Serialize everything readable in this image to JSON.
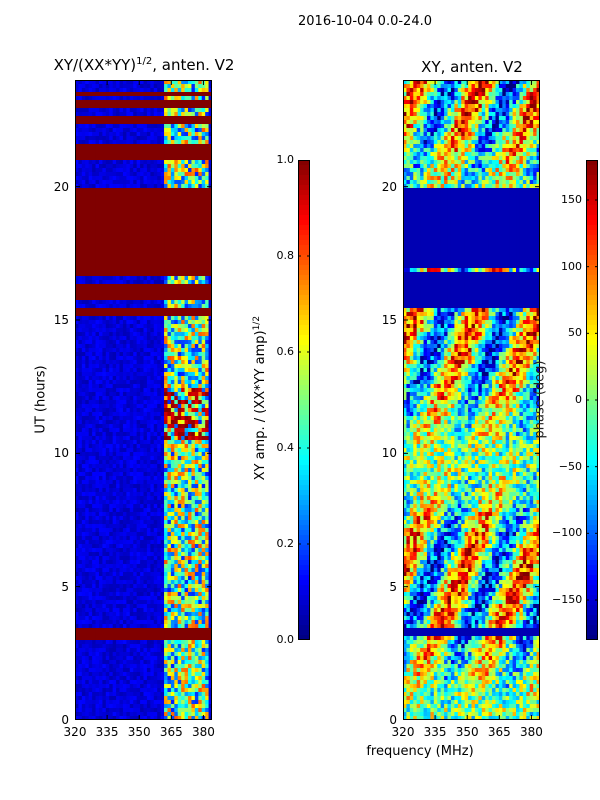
{
  "figure": {
    "suptitle": "2016-10-04 0.0-24.0",
    "shared_xlabel": "frequency (MHz)"
  },
  "chart_data": [
    {
      "type": "heatmap",
      "title": "XY/(XX*YY)^1/2, anten. V2",
      "title_main": "XY/(XX*YY)",
      "title_sup": "1/2",
      "title_tail": ", anten. V2",
      "xlabel": "frequency (MHz)",
      "ylabel": "UT (hours)",
      "xlim": [
        320,
        384
      ],
      "ylim": [
        0,
        24
      ],
      "xticks": [
        "320",
        "335",
        "350",
        "365",
        "380"
      ],
      "xtick_values": [
        320,
        335,
        350,
        365,
        380
      ],
      "yticks": [
        "0",
        "5",
        "10",
        "15",
        "20"
      ],
      "ytick_values": [
        0,
        5,
        10,
        15,
        20
      ],
      "colorbar": {
        "label": "XY amp. / (XX*YY amp)^1/2",
        "label_main": "XY amp. / (XX*YY amp)",
        "label_sup": "1/2",
        "range": [
          0.0,
          1.0
        ],
        "ticks": [
          "0.0",
          "0.2",
          "0.4",
          "0.6",
          "0.8",
          "1.0"
        ],
        "tick_values": [
          0.0,
          0.2,
          0.4,
          0.6,
          0.8,
          1.0
        ],
        "colormap": "jet"
      },
      "saturated_time_bands_hours": [
        [
          3.0,
          3.5
        ],
        [
          15.2,
          15.5
        ],
        [
          15.7,
          16.3
        ],
        [
          16.6,
          20.0
        ],
        [
          21.0,
          21.6
        ],
        [
          22.3,
          22.6
        ],
        [
          22.9,
          23.3
        ],
        [
          23.4,
          23.6
        ]
      ],
      "active_frequency_band_mhz": [
        361,
        382
      ]
    },
    {
      "type": "heatmap",
      "title": "XY, anten. V2",
      "xlabel": "frequency (MHz)",
      "ylabel": "",
      "xlim": [
        320,
        384
      ],
      "ylim": [
        0,
        24
      ],
      "xticks": [
        "320",
        "335",
        "350",
        "365",
        "380"
      ],
      "xtick_values": [
        320,
        335,
        350,
        365,
        380
      ],
      "yticks": [
        "0",
        "5",
        "10",
        "15",
        "20"
      ],
      "ytick_values": [
        0,
        5,
        10,
        15,
        20
      ],
      "colorbar": {
        "label": "phase (deg)",
        "range": [
          -180,
          180
        ],
        "ticks": [
          "−150",
          "−100",
          "−50",
          "0",
          "50",
          "100",
          "150"
        ],
        "tick_values": [
          -150,
          -100,
          -50,
          0,
          50,
          100,
          150
        ],
        "colormap": "jet"
      },
      "flat_time_bands_hours": [
        [
          3.2,
          3.5
        ],
        [
          15.4,
          16.8
        ],
        [
          16.9,
          20.0
        ]
      ]
    }
  ]
}
